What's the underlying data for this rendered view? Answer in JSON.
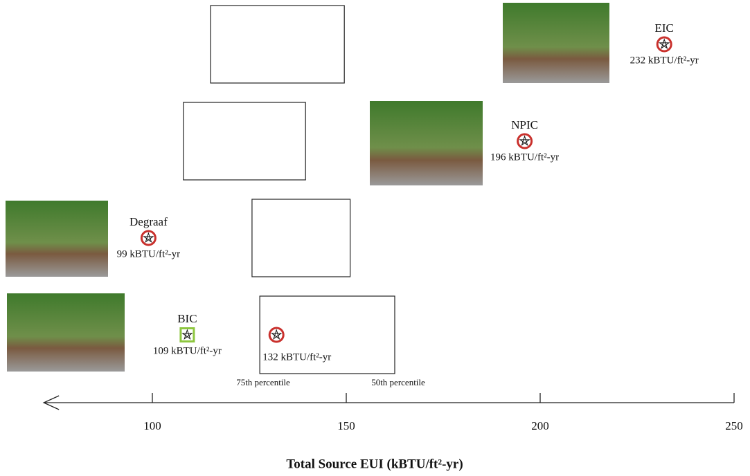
{
  "chart_data": {
    "type": "eui-scale",
    "title": "Total Source EUI (kBTU/ft²-yr)",
    "names": [
      "EIC",
      "NPIC",
      "Degraaf",
      "BIC",
      null
    ],
    "values": [
      232,
      196,
      99,
      109,
      132
    ],
    "value_labels": [
      "232 kBTU/ft²-yr",
      "196 kBTU/ft²-yr",
      "99 kBTU/ft²-yr",
      "109 kBTU/ft²-yr",
      "132 kBTU/ft²-yr"
    ],
    "markers": [
      "circle",
      "circle",
      "circle",
      "square",
      "circle"
    ],
    "colors": [
      "#c9302c",
      "#c9302c",
      "#c9302c",
      "#8dc63f",
      "#c9302c"
    ],
    "ranges": [
      [
        115,
        149.5
      ],
      [
        108,
        139.5
      ],
      [
        125.7,
        151
      ],
      [
        127.7,
        162.5
      ]
    ],
    "annotations": [
      "75th percentile",
      "50th percentile"
    ],
    "xlim": [
      72,
      250
    ],
    "xticks": [
      100,
      150,
      200,
      250
    ]
  }
}
